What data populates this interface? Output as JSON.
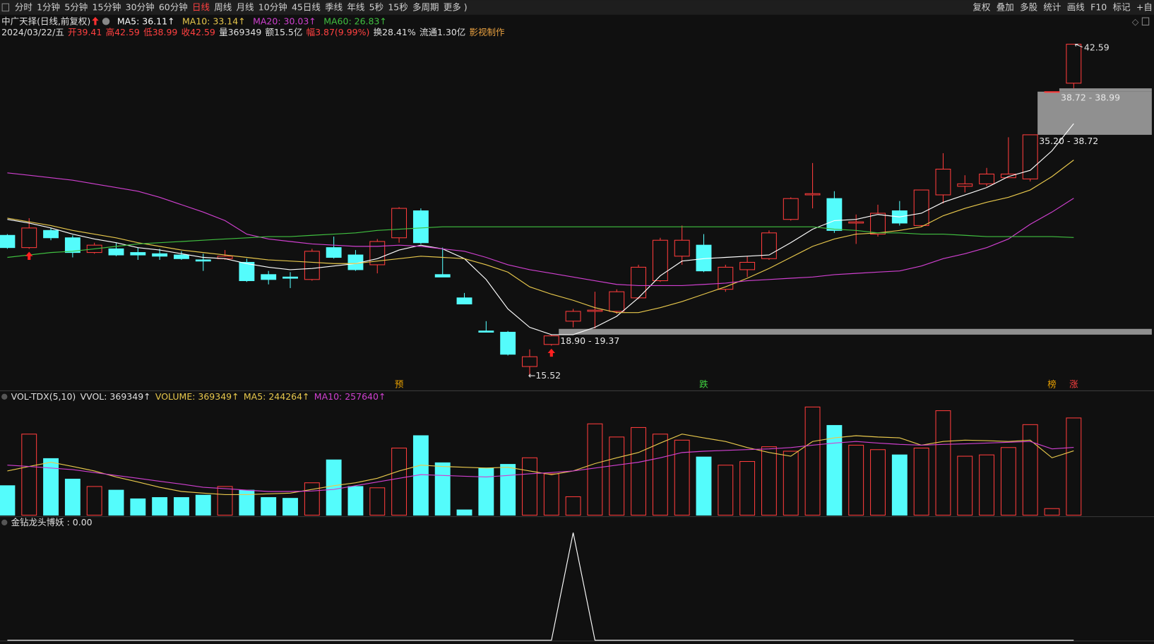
{
  "toolbar": {
    "left": [
      "分时",
      "1分钟",
      "5分钟",
      "15分钟",
      "30分钟",
      "60分钟",
      "日线",
      "周线",
      "月线",
      "10分钟",
      "45日线",
      "季线",
      "年线",
      "5秒",
      "15秒",
      "多周期",
      "更多 )"
    ],
    "active": 6,
    "right": [
      "复权",
      "叠加",
      "多股",
      "统计",
      "画线",
      "F10",
      "标记",
      "+自"
    ]
  },
  "header": {
    "title": "中广天择(日线,前复权)",
    "indicators": [
      {
        "text": "MA5: 36.11↑",
        "color": "#ffffff"
      },
      {
        "text": "MA10: 33.14↑",
        "color": "#e8c84c"
      },
      {
        "text": "MA20: 30.03↑",
        "color": "#d040d0"
      },
      {
        "text": "MA60: 26.83↑",
        "color": "#40c040"
      }
    ]
  },
  "info": [
    {
      "text": "2024/03/22/五",
      "color": "#e0e0e0"
    },
    {
      "text": "开39.41",
      "color": "#ff4040"
    },
    {
      "text": "高42.59",
      "color": "#ff4040"
    },
    {
      "text": "低38.99",
      "color": "#ff4040"
    },
    {
      "text": "收42.59",
      "color": "#ff4040"
    },
    {
      "text": "量369349",
      "color": "#e0e0e0"
    },
    {
      "text": "额15.5亿",
      "color": "#e0e0e0"
    },
    {
      "text": "幅3.87(9.99%)",
      "color": "#ff4040"
    },
    {
      "text": "换28.41%",
      "color": "#e0e0e0"
    },
    {
      "text": "流通1.30亿",
      "color": "#e0e0e0"
    },
    {
      "text": "影视制作",
      "color": "#e8a040"
    }
  ],
  "volume_header": [
    {
      "text": "VOL-TDX(5,10)",
      "color": "#e0e0e0"
    },
    {
      "text": "VVOL: 369349↑",
      "color": "#e0e0e0"
    },
    {
      "text": "VOLUME: 369349↑",
      "color": "#e8c84c"
    },
    {
      "text": "MA5: 244264↑",
      "color": "#e8c84c"
    },
    {
      "text": "MA10: 257640↑",
      "color": "#d040d0"
    }
  ],
  "indicator_header": [
    {
      "text": "金钻龙头博妖 : 0.00",
      "color": "#e0e0e0"
    }
  ],
  "chart_data": [
    {
      "type": "candlestick",
      "up_color": "#ff3c3c",
      "down_color": "#54fcfc",
      "ylim": [
        14.38,
        44.87
      ],
      "open": [
        27.0,
        26.0,
        27.4,
        26.8,
        25.6,
        25.9,
        25.6,
        25.5,
        25.4,
        25.0,
        25.1,
        24.8,
        23.8,
        23.6,
        23.4,
        26.0,
        25.4,
        24.6,
        26.8,
        29.0,
        23.8,
        21.9,
        19.2,
        19.1,
        16.3,
        18.1,
        20.0,
        20.8,
        20.8,
        21.9,
        23.3,
        25.3,
        26.2,
        22.6,
        24.2,
        25.1,
        28.3,
        30.3,
        30.0,
        28.0,
        27.1,
        29.0,
        27.8,
        30.3,
        31.0,
        31.2,
        31.7,
        31.6,
        38.72,
        39.41
      ],
      "high": [
        27.1,
        28.4,
        27.6,
        27.0,
        26.4,
        26.4,
        26.0,
        25.9,
        25.7,
        25.5,
        25.8,
        25.1,
        24.1,
        24.0,
        25.9,
        26.9,
        25.8,
        26.7,
        29.3,
        29.2,
        26.0,
        22.3,
        20.0,
        19.2,
        17.7,
        18.9,
        21.0,
        22.4,
        22.6,
        24.6,
        26.8,
        27.8,
        27.1,
        24.6,
        25.3,
        27.4,
        30.1,
        32.9,
        30.6,
        28.7,
        29.5,
        29.8,
        30.7,
        33.7,
        31.9,
        32.5,
        35.0,
        35.2,
        38.72,
        42.59
      ],
      "low": [
        25.9,
        25.9,
        26.6,
        25.2,
        25.5,
        25.3,
        25.0,
        25.0,
        25.0,
        24.1,
        25.0,
        23.2,
        23.0,
        22.7,
        23.3,
        25.1,
        24.1,
        23.9,
        26.4,
        26.3,
        23.6,
        21.4,
        19.1,
        17.2,
        15.52,
        18.0,
        19.5,
        19.4,
        20.6,
        21.8,
        23.2,
        24.6,
        24.0,
        22.4,
        23.6,
        25.0,
        28.2,
        29.2,
        27.2,
        26.3,
        26.9,
        27.8,
        27.7,
        29.6,
        30.5,
        31.0,
        31.7,
        31.4,
        38.72,
        38.99
      ],
      "close": [
        26.0,
        27.6,
        26.8,
        25.6,
        26.2,
        25.4,
        25.4,
        25.3,
        25.1,
        24.9,
        25.3,
        23.3,
        23.4,
        23.5,
        25.7,
        25.2,
        24.2,
        26.5,
        29.2,
        26.4,
        23.6,
        21.4,
        19.1,
        17.3,
        17.1,
        18.8,
        20.8,
        20.9,
        22.4,
        24.4,
        26.6,
        26.6,
        24.1,
        24.4,
        24.8,
        27.2,
        30.0,
        30.4,
        27.4,
        28.1,
        28.8,
        28.0,
        30.7,
        32.4,
        31.2,
        32.0,
        32.0,
        35.2,
        38.72,
        42.59
      ],
      "series": [
        {
          "color": "#ffffff",
          "values": [
            28.3,
            28.0,
            27.6,
            27.1,
            26.7,
            26.4,
            26.0,
            25.8,
            25.5,
            25.2,
            25.1,
            24.7,
            24.4,
            24.2,
            24.3,
            24.5,
            24.7,
            25.1,
            25.8,
            26.2,
            25.9,
            25.1,
            23.4,
            21.0,
            19.5,
            18.9,
            18.9,
            19.5,
            20.4,
            21.9,
            23.7,
            24.9,
            25.1,
            25.2,
            25.3,
            25.4,
            26.4,
            27.5,
            28.2,
            28.3,
            28.7,
            28.5,
            28.8,
            29.7,
            30.3,
            30.9,
            31.8,
            32.3,
            33.9,
            36.11
          ]
        },
        {
          "color": "#e8c84c",
          "values": [
            28.4,
            28.1,
            27.8,
            27.4,
            27.1,
            26.8,
            26.4,
            26.1,
            25.8,
            25.6,
            25.4,
            25.2,
            25.0,
            24.9,
            24.8,
            24.7,
            24.7,
            24.9,
            25.1,
            25.3,
            25.2,
            25.1,
            24.6,
            24.0,
            22.8,
            22.2,
            21.7,
            21.1,
            20.7,
            20.7,
            21.1,
            21.6,
            22.2,
            22.8,
            23.5,
            24.3,
            25.2,
            26.1,
            26.7,
            27.1,
            27.2,
            27.4,
            27.7,
            28.6,
            29.2,
            29.7,
            30.1,
            30.7,
            31.8,
            33.14
          ]
        },
        {
          "color": "#d040d0",
          "values": [
            32.1,
            31.9,
            31.7,
            31.5,
            31.2,
            30.9,
            30.6,
            30.1,
            29.5,
            28.9,
            28.2,
            27.1,
            26.7,
            26.5,
            26.3,
            26.2,
            26.1,
            26.1,
            26.2,
            26.1,
            25.9,
            25.7,
            25.2,
            24.6,
            24.2,
            23.9,
            23.6,
            23.3,
            23.0,
            22.9,
            22.9,
            22.9,
            23.0,
            23.1,
            23.3,
            23.4,
            23.5,
            23.6,
            23.8,
            23.9,
            24.0,
            24.1,
            24.5,
            25.1,
            25.5,
            26.0,
            26.7,
            27.9,
            28.9,
            30.03
          ]
        },
        {
          "color": "#40c040",
          "values": [
            25.2,
            25.4,
            25.6,
            25.7,
            25.9,
            26.1,
            26.3,
            26.4,
            26.5,
            26.6,
            26.7,
            26.8,
            26.9,
            26.9,
            27.0,
            27.1,
            27.2,
            27.4,
            27.5,
            27.6,
            27.7,
            27.7,
            27.7,
            27.7,
            27.7,
            27.7,
            27.7,
            27.7,
            27.7,
            27.7,
            27.7,
            27.7,
            27.7,
            27.7,
            27.7,
            27.7,
            27.7,
            27.7,
            27.5,
            27.4,
            27.2,
            27.2,
            27.1,
            27.1,
            27.0,
            26.9,
            26.9,
            26.9,
            26.9,
            26.83
          ]
        }
      ],
      "gaps": [
        {
          "label": "18.90 - 19.37",
          "low": 18.9,
          "high": 19.37,
          "from": 25
        },
        {
          "label": "35.20 - 38.72",
          "low": 35.2,
          "high": 38.72,
          "from": 47
        },
        {
          "label": "38.72 - 38.99",
          "low": 38.72,
          "high": 38.99,
          "from": 48
        }
      ],
      "annotations": [
        {
          "text": "←15.52",
          "index": 24,
          "value": 15.52
        },
        {
          "text": "42.59",
          "index": 49,
          "value": 42.59
        }
      ],
      "markers": [
        {
          "text": "预",
          "index": 18,
          "color": "#e8a000"
        },
        {
          "text": "跌",
          "index": 32,
          "color": "#40d040"
        },
        {
          "text": "榜",
          "index": 48,
          "color": "#e8a000"
        },
        {
          "text": "涨",
          "index": 49,
          "color": "#ff4040"
        }
      ],
      "signals": [
        1,
        25
      ]
    },
    {
      "type": "volume",
      "ylim": [
        0,
        425000
      ],
      "values": [
        112000,
        308000,
        215000,
        137000,
        109000,
        95000,
        62000,
        67000,
        67000,
        76000,
        109000,
        95000,
        67000,
        64000,
        123000,
        210000,
        109000,
        104000,
        255000,
        302000,
        199000,
        20000,
        179000,
        193000,
        218000,
        157000,
        70000,
        347000,
        297000,
        333000,
        308000,
        285000,
        221000,
        190000,
        204000,
        260000,
        243000,
        411000,
        341000,
        266000,
        249000,
        229000,
        255000,
        397000,
        224000,
        229000,
        257000,
        344000,
        25000,
        369349
      ],
      "series": [
        {
          "color": "#e8c84c",
          "values": [
            168000,
            185000,
            201000,
            185000,
            168000,
            145000,
            126000,
            106000,
            90000,
            84000,
            78000,
            78000,
            81000,
            84000,
            98000,
            112000,
            123000,
            140000,
            168000,
            190000,
            185000,
            182000,
            179000,
            182000,
            168000,
            154000,
            168000,
            196000,
            218000,
            238000,
            274000,
            308000,
            294000,
            280000,
            257000,
            238000,
            224000,
            280000,
            294000,
            302000,
            297000,
            294000,
            266000,
            280000,
            285000,
            283000,
            280000,
            285000,
            218000,
            244264
          ]
        },
        {
          "color": "#d040d0",
          "values": [
            190000,
            185000,
            179000,
            173000,
            162000,
            151000,
            140000,
            129000,
            118000,
            106000,
            101000,
            95000,
            90000,
            90000,
            92000,
            98000,
            112000,
            126000,
            140000,
            154000,
            151000,
            148000,
            145000,
            151000,
            157000,
            162000,
            168000,
            179000,
            190000,
            201000,
            218000,
            238000,
            243000,
            246000,
            249000,
            252000,
            257000,
            266000,
            274000,
            280000,
            274000,
            269000,
            266000,
            269000,
            271000,
            274000,
            277000,
            280000,
            252000,
            257640
          ]
        }
      ]
    },
    {
      "type": "line",
      "ylim": [
        0,
        1.06
      ],
      "color": "#ffffff",
      "values": [
        0,
        0,
        0,
        0,
        0,
        0,
        0,
        0,
        0,
        0,
        0,
        0,
        0,
        0,
        0,
        0,
        0,
        0,
        0,
        0,
        0,
        0,
        0,
        0,
        0,
        0,
        1,
        0,
        0,
        0,
        0,
        0,
        0,
        0,
        0,
        0,
        0,
        0,
        0,
        0,
        0,
        0,
        0,
        0,
        0,
        0,
        0,
        0,
        0,
        0
      ]
    }
  ]
}
